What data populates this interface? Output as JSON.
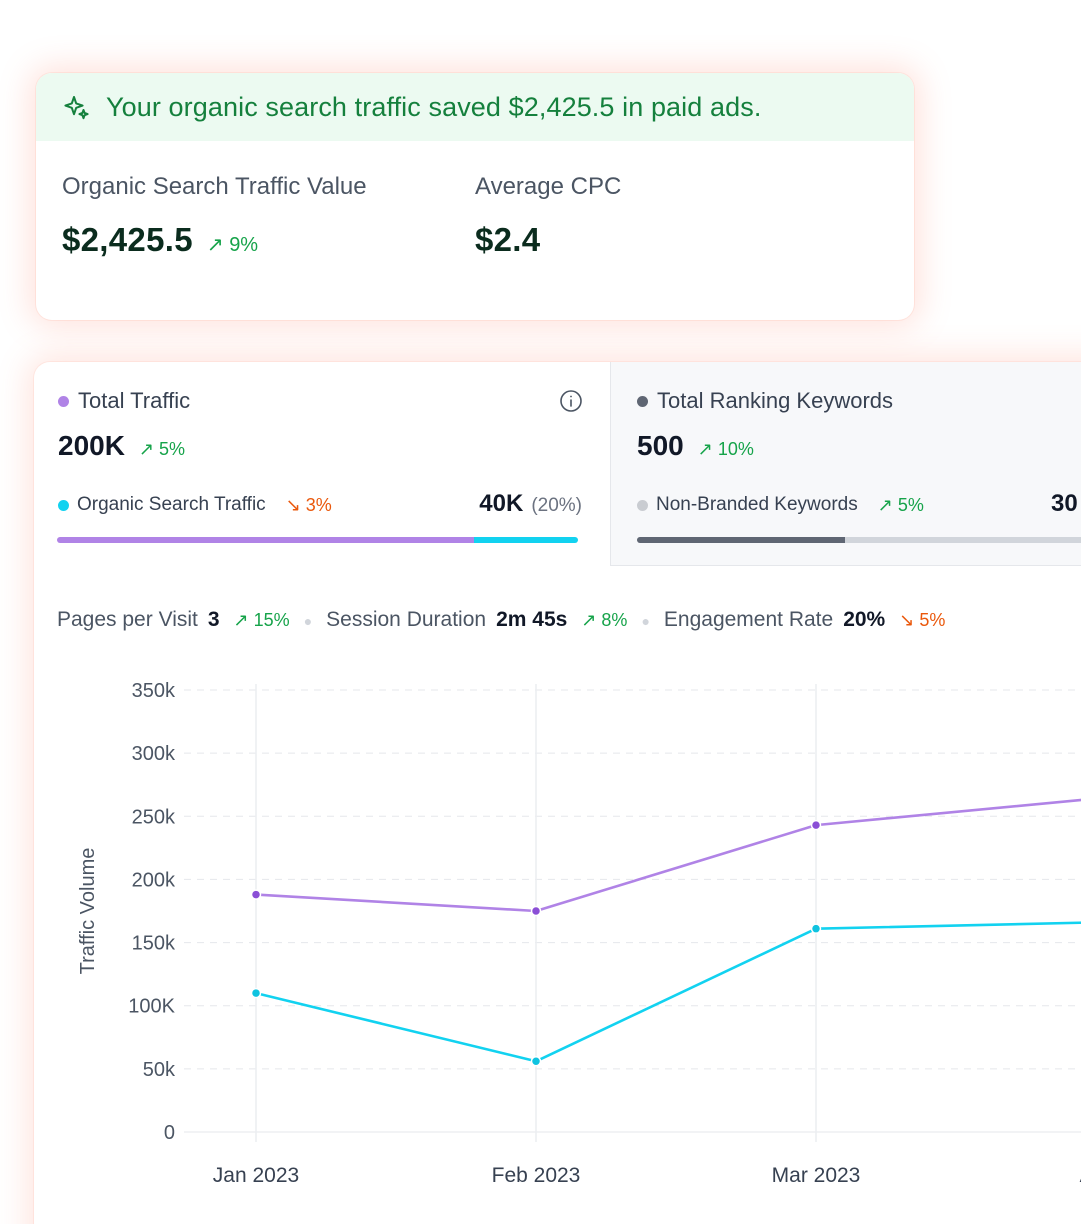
{
  "value_card": {
    "banner_icon": "sparkle-icon",
    "banner_text": "Your organic search traffic saved $2,425.5 in paid ads.",
    "metrics": [
      {
        "label": "Organic Search Traffic Value",
        "value": "$2,425.5",
        "change": "9%",
        "direction": "up"
      },
      {
        "label": "Average CPC",
        "value": "$2.4"
      }
    ]
  },
  "colors": {
    "total_traffic": "#b083e6",
    "organic": "#12d2f0",
    "keywords": "#5f6673",
    "non_branded": "#c9ccd1",
    "up": "#16a34a",
    "down": "#ea580c"
  },
  "traffic_panel": {
    "title": "Total Traffic",
    "value": "200K",
    "change": "5%",
    "direction": "up",
    "info_icon": "info-icon",
    "sub_label": "Organic Search Traffic",
    "sub_change": "3%",
    "sub_direction": "down",
    "sub_value": "40K",
    "sub_pct": "(20%)",
    "bar_fraction": 0.8
  },
  "keywords_panel": {
    "title": "Total Ranking Keywords",
    "value": "500",
    "change": "10%",
    "direction": "up",
    "sub_label": "Non-Branded Keywords",
    "sub_change": "5%",
    "sub_direction": "up",
    "sub_value": "30",
    "bar_fraction": 0.4
  },
  "stats": [
    {
      "label": "Pages per Visit",
      "value": "3",
      "change": "15%",
      "direction": "up"
    },
    {
      "label": "Session Duration",
      "value": "2m 45s",
      "change": "8%",
      "direction": "up"
    },
    {
      "label": "Engagement Rate",
      "value": "20%",
      "change": "5%",
      "direction": "down"
    }
  ],
  "chart_data": {
    "type": "line",
    "categories": [
      "Jan 2023",
      "Feb 2023",
      "Mar 2023",
      "Apr"
    ],
    "ylabel": "Traffic Volume",
    "ylim": [
      0,
      350000
    ],
    "yticks": [
      0,
      50000,
      100000,
      150000,
      200000,
      250000,
      300000,
      350000
    ],
    "ytick_labels": [
      "0",
      "50k",
      "100K",
      "150k",
      "200k",
      "250k",
      "300k",
      "350k"
    ],
    "grid": true,
    "series": [
      {
        "values": [
          188000,
          175000,
          243000,
          264000
        ],
        "color": "#b083e6",
        "point_color": "#8b4fd6"
      },
      {
        "values": [
          110000,
          56000,
          161000,
          166000
        ],
        "color": "#12d2f0",
        "point_color": "#0fc3e0"
      }
    ]
  }
}
